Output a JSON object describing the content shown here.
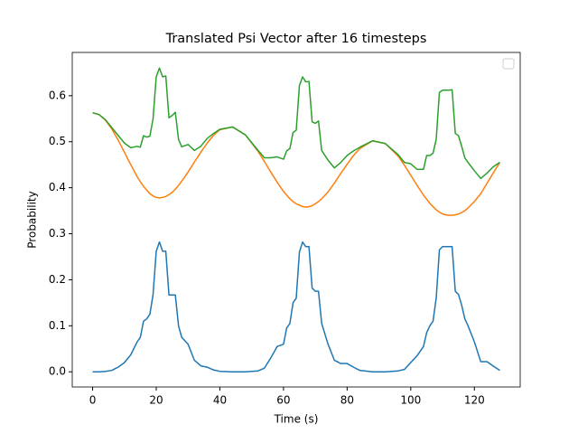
{
  "chart_data": {
    "type": "line",
    "title": "Translated Psi Vector after 16 timesteps",
    "x_label": "Time (s)",
    "y_label": "Probability",
    "x": [
      0,
      2,
      4,
      6,
      8,
      10,
      12,
      14,
      15,
      16,
      17,
      18,
      19,
      20,
      21,
      22,
      23,
      24,
      25,
      26,
      27,
      28,
      30,
      32,
      34,
      36,
      38,
      40,
      44,
      48,
      52,
      54,
      56,
      58,
      60,
      61,
      62,
      63,
      64,
      65,
      66,
      67,
      68,
      69,
      70,
      71,
      72,
      74,
      76,
      78,
      80,
      82,
      84,
      88,
      92,
      96,
      98,
      100,
      102,
      104,
      105,
      106,
      107,
      108,
      109,
      110,
      111,
      112,
      113,
      114,
      115,
      116,
      117,
      118,
      120,
      122,
      124,
      126,
      128
    ],
    "series": [
      {
        "color": "#1f77b4",
        "values": [
          0.0,
          0.0,
          0.001,
          0.003,
          0.01,
          0.02,
          0.037,
          0.065,
          0.075,
          0.11,
          0.115,
          0.125,
          0.168,
          0.262,
          0.282,
          0.262,
          0.262,
          0.167,
          0.167,
          0.167,
          0.1,
          0.075,
          0.06,
          0.025,
          0.013,
          0.01,
          0.004,
          0.001,
          0.0,
          0.0,
          0.002,
          0.008,
          0.03,
          0.055,
          0.06,
          0.095,
          0.105,
          0.15,
          0.16,
          0.26,
          0.282,
          0.272,
          0.272,
          0.182,
          0.175,
          0.175,
          0.105,
          0.06,
          0.025,
          0.018,
          0.018,
          0.01,
          0.003,
          0.0,
          0.0,
          0.002,
          0.005,
          0.02,
          0.035,
          0.055,
          0.085,
          0.1,
          0.11,
          0.16,
          0.265,
          0.272,
          0.272,
          0.272,
          0.272,
          0.175,
          0.168,
          0.145,
          0.115,
          0.1,
          0.065,
          0.022,
          0.022,
          0.012,
          0.003
        ]
      },
      {
        "color": "#ff7f0e",
        "values": [
          0.563,
          0.559,
          0.547,
          0.528,
          0.504,
          0.477,
          0.45,
          0.424,
          0.413,
          0.403,
          0.395,
          0.387,
          0.382,
          0.379,
          0.378,
          0.379,
          0.381,
          0.385,
          0.39,
          0.397,
          0.405,
          0.414,
          0.434,
          0.456,
          0.477,
          0.497,
          0.514,
          0.526,
          0.532,
          0.515,
          0.479,
          0.457,
          0.434,
          0.412,
          0.392,
          0.384,
          0.376,
          0.37,
          0.365,
          0.362,
          0.359,
          0.358,
          0.359,
          0.361,
          0.365,
          0.37,
          0.376,
          0.391,
          0.41,
          0.431,
          0.451,
          0.47,
          0.485,
          0.502,
          0.496,
          0.469,
          0.449,
          0.427,
          0.405,
          0.384,
          0.375,
          0.366,
          0.359,
          0.352,
          0.347,
          0.343,
          0.341,
          0.34,
          0.34,
          0.341,
          0.343,
          0.346,
          0.35,
          0.356,
          0.37,
          0.387,
          0.41,
          0.433,
          0.455
        ]
      },
      {
        "color": "#2ca02c",
        "values": [
          0.563,
          0.559,
          0.548,
          0.531,
          0.514,
          0.497,
          0.487,
          0.49,
          0.488,
          0.513,
          0.51,
          0.512,
          0.55,
          0.641,
          0.66,
          0.641,
          0.643,
          0.552,
          0.557,
          0.564,
          0.505,
          0.489,
          0.494,
          0.481,
          0.49,
          0.507,
          0.518,
          0.527,
          0.532,
          0.515,
          0.481,
          0.465,
          0.465,
          0.467,
          0.462,
          0.48,
          0.485,
          0.52,
          0.525,
          0.622,
          0.641,
          0.63,
          0.631,
          0.543,
          0.54,
          0.545,
          0.481,
          0.46,
          0.443,
          0.455,
          0.47,
          0.48,
          0.488,
          0.502,
          0.496,
          0.472,
          0.455,
          0.452,
          0.44,
          0.44,
          0.47,
          0.47,
          0.475,
          0.505,
          0.607,
          0.612,
          0.612,
          0.612,
          0.613,
          0.518,
          0.513,
          0.49,
          0.465,
          0.455,
          0.437,
          0.42,
          0.432,
          0.446,
          0.455
        ]
      }
    ],
    "xlim": [
      -6.4,
      134.4
    ],
    "ylim": [
      -0.033,
      0.694
    ],
    "xticks": [
      0,
      20,
      40,
      60,
      80,
      100,
      120
    ],
    "yticks": [
      {
        "value": 0,
        "label": "0.0"
      },
      0.1,
      0.2,
      0.3,
      0.4,
      0.5,
      0.6
    ]
  }
}
